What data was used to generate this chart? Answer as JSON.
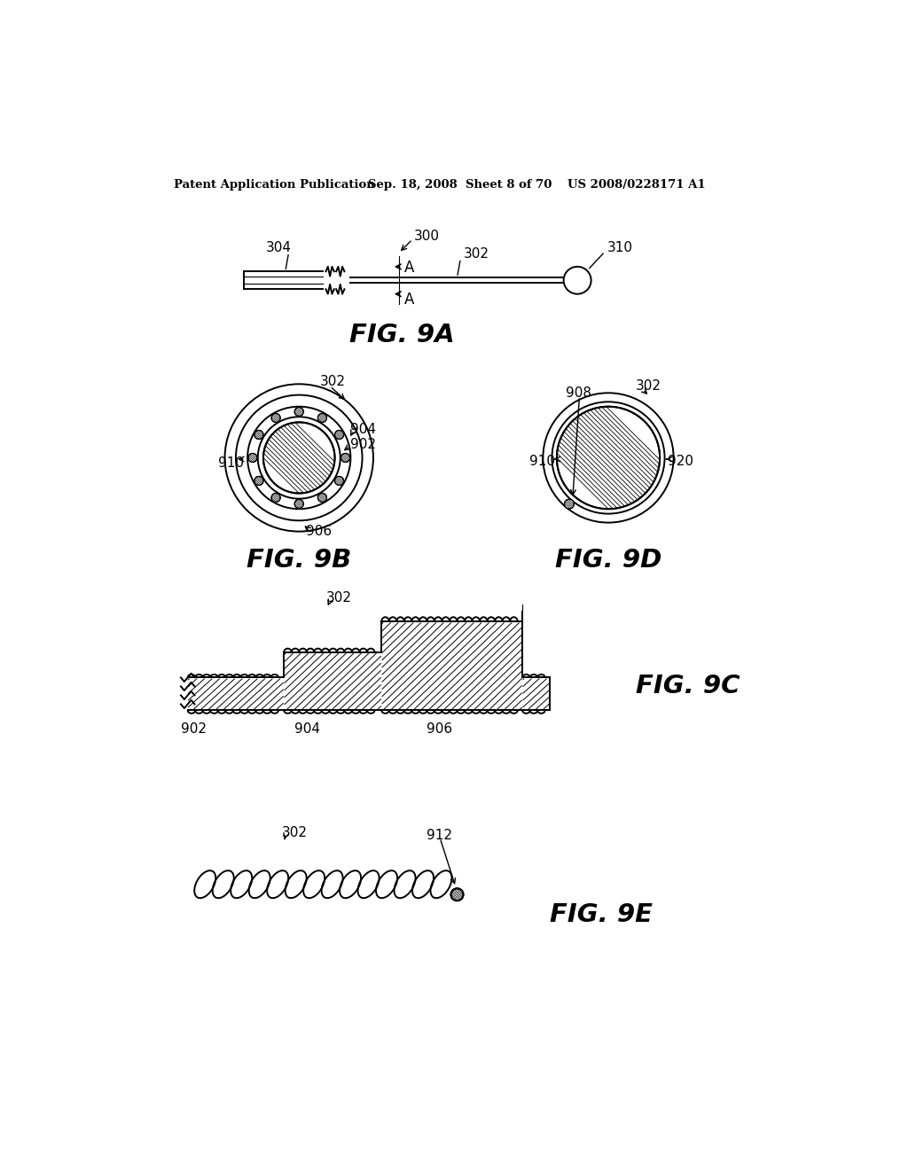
{
  "background_color": "#ffffff",
  "header_text": "Patent Application Publication",
  "header_date": "Sep. 18, 2008  Sheet 8 of 70",
  "header_patent": "US 2008/0228171 A1",
  "fig9a_label": "FIG. 9A",
  "fig9b_label": "FIG. 9B",
  "fig9c_label": "FIG. 9C",
  "fig9d_label": "FIG. 9D",
  "fig9e_label": "FIG. 9E"
}
